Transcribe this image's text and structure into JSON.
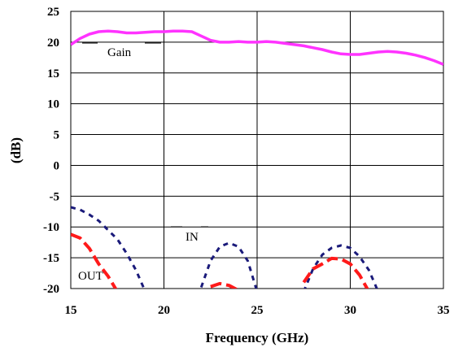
{
  "chart_data": {
    "type": "line",
    "xlabel": "Frequency (GHz)",
    "ylabel": "(dB)",
    "xlim": [
      15,
      35
    ],
    "ylim": [
      -20,
      25
    ],
    "x_ticks": [
      15,
      20,
      25,
      30,
      35
    ],
    "y_ticks": [
      25,
      20,
      15,
      10,
      5,
      0,
      -5,
      -10,
      -15,
      -20
    ],
    "grid": true,
    "annotations": [
      "Gain",
      "IN",
      "OUT"
    ],
    "colors": {
      "gain": "#ff33ff",
      "in": "#1a1a7a",
      "out": "#ff1a1a"
    },
    "series": [
      {
        "name": "Gain",
        "color": "#ff33ff",
        "style": "solid",
        "x": [
          15.0,
          15.5,
          16.0,
          16.5,
          17.0,
          17.5,
          18.0,
          18.5,
          19.0,
          19.5,
          20.0,
          20.5,
          21.0,
          21.5,
          22.0,
          22.5,
          23.0,
          23.5,
          24.0,
          24.5,
          25.0,
          25.5,
          26.0,
          26.5,
          27.0,
          27.5,
          28.0,
          28.5,
          29.0,
          29.5,
          30.0,
          30.5,
          31.0,
          31.5,
          32.0,
          32.5,
          33.0,
          33.5,
          34.0,
          34.5,
          35.0
        ],
        "y": [
          19.6,
          20.6,
          21.3,
          21.7,
          21.8,
          21.7,
          21.5,
          21.5,
          21.6,
          21.7,
          21.7,
          21.8,
          21.8,
          21.7,
          21.0,
          20.3,
          20.0,
          20.0,
          20.1,
          20.0,
          20.0,
          20.1,
          20.0,
          19.8,
          19.6,
          19.4,
          19.1,
          18.8,
          18.4,
          18.1,
          18.0,
          18.0,
          18.2,
          18.4,
          18.5,
          18.4,
          18.2,
          17.9,
          17.5,
          17.0,
          16.4
        ]
      },
      {
        "name": "IN",
        "color": "#1a1a7a",
        "style": "dashed",
        "x": [
          15.0,
          15.5,
          16.0,
          16.5,
          17.0,
          17.5,
          18.0,
          18.5,
          19.0,
          19.5,
          20.0,
          20.5,
          21.0,
          21.5,
          22.0,
          22.5,
          23.0,
          23.5,
          24.0,
          24.5,
          25.0,
          25.5,
          26.0,
          26.5,
          27.0,
          27.5,
          28.0,
          28.5,
          29.0,
          29.5,
          30.0,
          30.5,
          31.0,
          31.5,
          32.0,
          32.5,
          33.0,
          33.5,
          34.0,
          34.5,
          35.0
        ],
        "y": [
          -6.8,
          -7.2,
          -8.0,
          -9.0,
          -10.5,
          -12.0,
          -14.3,
          -17.0,
          -20.5,
          null,
          null,
          null,
          null,
          null,
          -19.8,
          -15.5,
          -13.2,
          -12.6,
          -13.2,
          -15.5,
          -20.5,
          null,
          null,
          null,
          null,
          -20.5,
          -16.8,
          -14.5,
          -13.4,
          -13.0,
          -13.4,
          -14.8,
          -17.0,
          -20.5,
          null,
          null,
          null,
          null,
          null,
          null,
          -19.0
        ]
      },
      {
        "name": "OUT",
        "color": "#ff1a1a",
        "style": "dashed",
        "x": [
          15.0,
          15.5,
          16.0,
          16.5,
          17.0,
          17.5,
          18.0,
          18.5,
          19.0,
          19.5,
          20.0,
          20.5,
          21.0,
          21.5,
          22.0,
          22.5,
          23.0,
          23.5,
          24.0,
          24.5,
          25.0,
          25.5,
          26.0,
          26.5,
          27.0,
          27.5,
          28.0,
          28.5,
          29.0,
          29.5,
          30.0,
          30.5,
          31.0,
          31.5,
          32.0,
          32.5,
          33.0,
          33.5,
          34.0,
          34.5,
          35.0
        ],
        "y": [
          -11.2,
          -11.8,
          -13.5,
          -16.0,
          -18.0,
          -20.5,
          null,
          null,
          null,
          null,
          null,
          null,
          null,
          null,
          null,
          -19.7,
          -19.2,
          -19.5,
          -20.3,
          null,
          null,
          null,
          null,
          null,
          null,
          -19.0,
          -16.8,
          -16.0,
          -15.1,
          -15.2,
          -16.0,
          -17.8,
          -20.5,
          null,
          null,
          null,
          null,
          null,
          null,
          null,
          null
        ]
      }
    ]
  }
}
